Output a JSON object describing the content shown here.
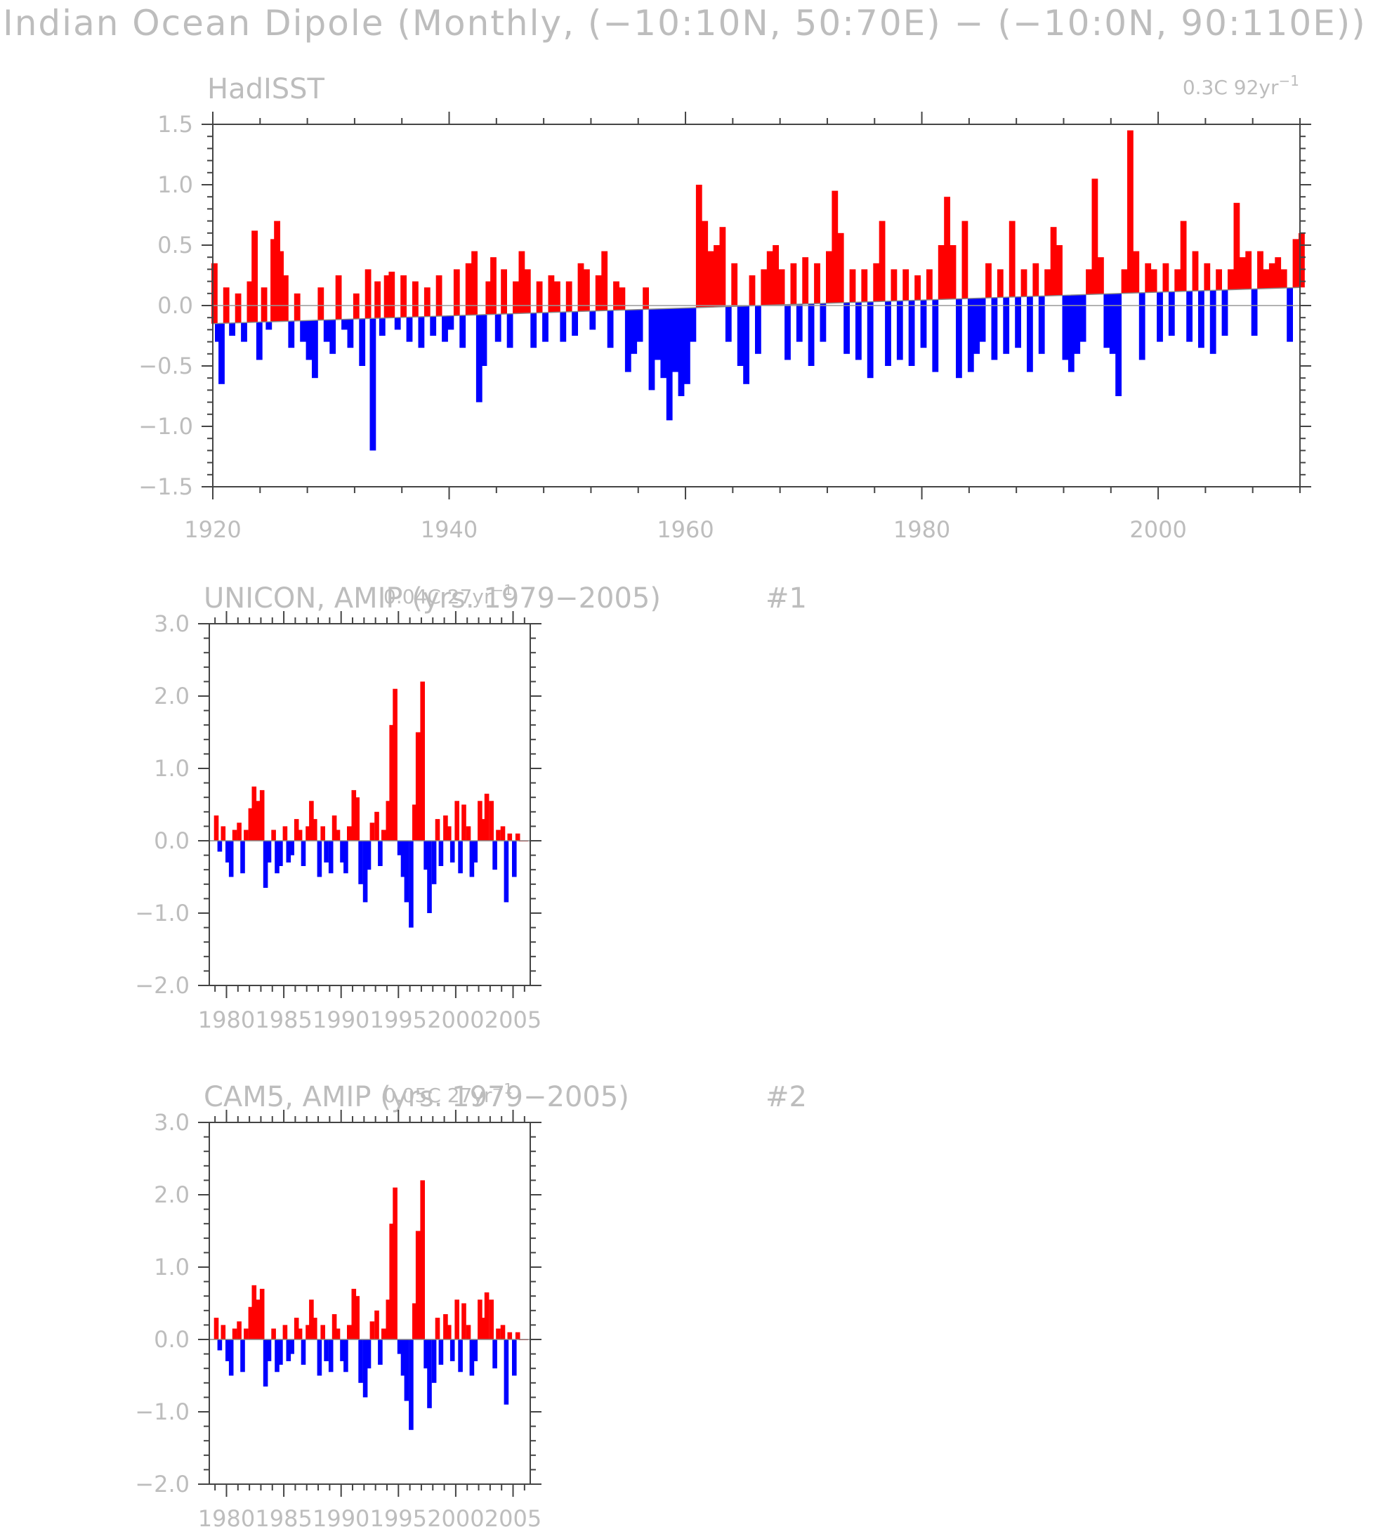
{
  "page": {
    "title": "Indian Ocean Dipole (Monthly, (−10:10N, 50:70E) − (−10:0N, 90:110E))"
  },
  "colors": {
    "positive": "#ff0000",
    "negative": "#0000ff",
    "text": "#bdbdbd",
    "axis": "#444444"
  },
  "chart_data": [
    {
      "type": "bar",
      "title": "HadISST",
      "trend_label": "0.3C 92yr",
      "trend_exp": "−1",
      "panel_number": "",
      "xlim": [
        1920,
        2012
      ],
      "ylim": [
        -1.5,
        1.5
      ],
      "baseline": [
        [
          1920,
          -0.15
        ],
        [
          1960,
          -0.02
        ],
        [
          2012,
          0.15
        ]
      ],
      "x_ticks": [
        1920,
        1940,
        1960,
        1980,
        2000
      ],
      "x_tick_labels": [
        "1920",
        "1940",
        "1960",
        "1980",
        "2000"
      ],
      "y_ticks": [
        -1.5,
        -1.0,
        -0.5,
        0.0,
        0.5,
        1.0,
        1.5
      ],
      "y_tick_labels": [
        "−1.5",
        "−1.0",
        "−0.5",
        "0.0",
        "0.5",
        "1.0",
        "1.5"
      ],
      "series": [
        {
          "x": [
            1920.0,
            1920.3,
            1920.6,
            1921.0,
            1921.5,
            1922.0,
            1922.5,
            1923.0,
            1923.4,
            1923.8,
            1924.2,
            1924.6,
            1925.0,
            1925.3,
            1925.6,
            1926.0,
            1926.5,
            1927.0,
            1927.5,
            1928.0,
            1928.5,
            1929.0,
            1929.5,
            1930.0,
            1930.5,
            1931.0,
            1931.5,
            1932.0,
            1932.5,
            1933.0,
            1933.4,
            1933.8,
            1934.2,
            1934.6,
            1935.0,
            1935.5,
            1936.0,
            1936.5,
            1937.0,
            1937.5,
            1938.0,
            1938.5,
            1939.0,
            1939.5,
            1940.0,
            1940.5,
            1941.0,
            1941.5,
            1942.0,
            1942.4,
            1942.8,
            1943.2,
            1943.6,
            1944.0,
            1944.5,
            1945.0,
            1945.5,
            1946.0,
            1946.5,
            1947.0,
            1947.5,
            1948.0,
            1948.5,
            1949.0,
            1949.5,
            1950.0,
            1950.5,
            1951.0,
            1951.5,
            1952.0,
            1952.5,
            1953.0,
            1953.5,
            1954.0,
            1954.5,
            1955.0,
            1955.5,
            1956.0,
            1956.5,
            1957.0,
            1957.5,
            1958.0,
            1958.5,
            1959.0,
            1959.5,
            1960.0,
            1960.5,
            1961.0,
            1961.5,
            1962.0,
            1962.5,
            1963.0,
            1963.5,
            1964.0,
            1964.5,
            1965.0,
            1965.5,
            1966.0,
            1966.5,
            1967.0,
            1967.5,
            1968.0,
            1968.5,
            1969.0,
            1969.5,
            1970.0,
            1970.5,
            1971.0,
            1971.5,
            1972.0,
            1972.5,
            1973.0,
            1973.5,
            1974.0,
            1974.5,
            1975.0,
            1975.5,
            1976.0,
            1976.5,
            1977.0,
            1977.5,
            1978.0,
            1978.5,
            1979.0,
            1979.5,
            1980.0,
            1980.5,
            1981.0,
            1981.5,
            1982.0,
            1982.5,
            1983.0,
            1983.5,
            1984.0,
            1984.5,
            1985.0,
            1985.5,
            1986.0,
            1986.5,
            1987.0,
            1987.5,
            1988.0,
            1988.5,
            1989.0,
            1989.5,
            1990.0,
            1990.5,
            1991.0,
            1991.5,
            1992.0,
            1992.5,
            1993.0,
            1993.5,
            1994.0,
            1994.5,
            1995.0,
            1995.5,
            1996.0,
            1996.5,
            1997.0,
            1997.5,
            1998.0,
            1998.5,
            1999.0,
            1999.5,
            2000.0,
            2000.5,
            2001.0,
            2001.5,
            2002.0,
            2002.5,
            2003.0,
            2003.5,
            2004.0,
            2004.5,
            2005.0,
            2005.5,
            2006.0,
            2006.5,
            2007.0,
            2007.5,
            2008.0,
            2008.5,
            2009.0,
            2009.5,
            2010.0,
            2010.5,
            2011.0,
            2011.5,
            2012.0
          ],
          "values": [
            0.35,
            -0.3,
            -0.65,
            0.15,
            -0.25,
            0.1,
            -0.3,
            0.2,
            0.62,
            -0.45,
            0.15,
            -0.2,
            0.55,
            0.7,
            0.45,
            0.25,
            -0.35,
            0.1,
            -0.3,
            -0.45,
            -0.6,
            0.15,
            -0.3,
            -0.4,
            0.25,
            -0.2,
            -0.35,
            0.1,
            -0.5,
            0.3,
            -1.2,
            0.2,
            -0.25,
            0.25,
            0.28,
            -0.2,
            0.25,
            -0.3,
            0.2,
            -0.35,
            0.15,
            -0.25,
            0.25,
            -0.3,
            -0.2,
            0.3,
            -0.35,
            0.35,
            0.45,
            -0.8,
            -0.5,
            0.2,
            0.4,
            -0.3,
            0.3,
            -0.35,
            0.2,
            0.45,
            0.3,
            -0.35,
            0.2,
            -0.3,
            0.25,
            0.2,
            -0.3,
            0.2,
            -0.25,
            0.35,
            0.3,
            -0.2,
            0.25,
            0.45,
            -0.35,
            0.2,
            0.15,
            -0.55,
            -0.4,
            -0.3,
            0.15,
            -0.7,
            -0.45,
            -0.6,
            -0.95,
            -0.55,
            -0.75,
            -0.65,
            -0.3,
            1.0,
            0.7,
            0.45,
            0.5,
            0.65,
            -0.3,
            0.35,
            -0.5,
            -0.65,
            0.25,
            -0.4,
            0.3,
            0.45,
            0.5,
            0.3,
            -0.45,
            0.35,
            -0.3,
            0.4,
            -0.5,
            0.35,
            -0.3,
            0.45,
            0.95,
            0.6,
            -0.4,
            0.3,
            -0.45,
            0.3,
            -0.6,
            0.35,
            0.7,
            -0.5,
            0.3,
            -0.45,
            0.3,
            -0.5,
            0.25,
            -0.35,
            0.3,
            -0.55,
            0.5,
            0.9,
            0.5,
            -0.6,
            0.7,
            -0.55,
            -0.4,
            -0.3,
            0.35,
            -0.45,
            0.3,
            -0.4,
            0.7,
            -0.35,
            0.3,
            -0.55,
            0.35,
            -0.4,
            0.3,
            0.65,
            0.5,
            -0.45,
            -0.55,
            -0.4,
            -0.3,
            0.3,
            1.05,
            0.4,
            -0.35,
            -0.4,
            -0.75,
            0.3,
            1.45,
            0.45,
            -0.45,
            0.35,
            0.3,
            -0.3,
            0.35,
            -0.25,
            0.3,
            0.7,
            -0.3,
            0.45,
            -0.35,
            0.35,
            -0.4,
            0.3,
            -0.25,
            0.3,
            0.85,
            0.4,
            0.45,
            -0.25,
            0.45,
            0.3,
            0.35,
            0.4,
            0.3,
            -0.3,
            0.55,
            0.6
          ]
        }
      ]
    },
    {
      "type": "bar",
      "title": "UNICON, AMIP (yrs. 1979−2005)",
      "trend_label": "0.04C 27yr",
      "trend_exp": "−1",
      "panel_number": "#1",
      "xlim": [
        1978.5,
        2006.5
      ],
      "ylim": [
        -2.0,
        3.0
      ],
      "baseline": [
        [
          1978.5,
          0.0
        ],
        [
          2006.5,
          0.0
        ]
      ],
      "x_ticks": [
        1980,
        1985,
        1990,
        1995,
        2000,
        2005
      ],
      "x_tick_labels": [
        "1980",
        "1985",
        "1990",
        "1995",
        "2000",
        "2005"
      ],
      "y_ticks": [
        -2.0,
        -1.0,
        0.0,
        1.0,
        2.0,
        3.0
      ],
      "y_tick_labels": [
        "−2.0",
        "−1.0",
        "0.0",
        "1.0",
        "2.0",
        "3.0"
      ],
      "series": [
        {
          "x": [
            1979.0,
            1979.3,
            1979.6,
            1980.0,
            1980.3,
            1980.6,
            1981.0,
            1981.3,
            1981.6,
            1982.0,
            1982.3,
            1982.6,
            1983.0,
            1983.3,
            1983.6,
            1984.0,
            1984.3,
            1984.6,
            1985.0,
            1985.3,
            1985.6,
            1986.0,
            1986.3,
            1986.6,
            1987.0,
            1987.3,
            1987.6,
            1988.0,
            1988.3,
            1988.6,
            1989.0,
            1989.3,
            1989.6,
            1990.0,
            1990.3,
            1990.6,
            1991.0,
            1991.3,
            1991.6,
            1992.0,
            1992.3,
            1992.6,
            1993.0,
            1993.3,
            1993.6,
            1994.0,
            1994.3,
            1994.6,
            1995.0,
            1995.3,
            1995.6,
            1996.0,
            1996.3,
            1996.6,
            1997.0,
            1997.3,
            1997.6,
            1998.0,
            1998.3,
            1998.6,
            1999.0,
            1999.3,
            1999.6,
            2000.0,
            2000.3,
            2000.6,
            2001.0,
            2001.3,
            2001.6,
            2002.0,
            2002.3,
            2002.6,
            2003.0,
            2003.3,
            2003.6,
            2004.0,
            2004.3,
            2004.6,
            2005.0,
            2005.3,
            2005.6,
            2006.0
          ],
          "values": [
            0.35,
            -0.15,
            0.2,
            -0.3,
            -0.5,
            0.15,
            0.25,
            -0.45,
            0.15,
            0.45,
            0.75,
            0.55,
            0.7,
            -0.65,
            -0.3,
            0.15,
            -0.45,
            -0.35,
            0.2,
            -0.3,
            -0.2,
            0.3,
            0.15,
            -0.35,
            0.2,
            0.55,
            0.3,
            -0.5,
            0.2,
            -0.3,
            -0.45,
            0.35,
            0.15,
            -0.3,
            -0.45,
            0.2,
            0.7,
            0.6,
            -0.6,
            -0.85,
            -0.4,
            0.25,
            0.4,
            -0.35,
            0.15,
            0.55,
            1.6,
            2.1,
            -0.2,
            -0.5,
            -0.85,
            -1.2,
            0.5,
            1.5,
            2.2,
            -0.4,
            -1.0,
            -0.6,
            0.3,
            -0.35,
            0.35,
            0.2,
            -0.3,
            0.55,
            -0.45,
            0.5,
            0.2,
            -0.5,
            -0.3,
            0.55,
            0.3,
            0.65,
            0.55,
            -0.4,
            0.15,
            0.2,
            -0.85,
            0.1,
            -0.5,
            0.1,
            0.0,
            0.0
          ]
        }
      ]
    },
    {
      "type": "bar",
      "title": "CAM5, AMIP (yrs. 1979−2005)",
      "trend_label": "0.05C 27yr",
      "trend_exp": "−1",
      "panel_number": "#2",
      "xlim": [
        1978.5,
        2006.5
      ],
      "ylim": [
        -2.0,
        3.0
      ],
      "baseline": [
        [
          1978.5,
          0.0
        ],
        [
          2006.5,
          0.0
        ]
      ],
      "x_ticks": [
        1980,
        1985,
        1990,
        1995,
        2000,
        2005
      ],
      "x_tick_labels": [
        "1980",
        "1985",
        "1990",
        "1995",
        "2000",
        "2005"
      ],
      "y_ticks": [
        -2.0,
        -1.0,
        0.0,
        1.0,
        2.0,
        3.0
      ],
      "y_tick_labels": [
        "−2.0",
        "−1.0",
        "0.0",
        "1.0",
        "2.0",
        "3.0"
      ],
      "series": [
        {
          "x": [
            1979.0,
            1979.3,
            1979.6,
            1980.0,
            1980.3,
            1980.6,
            1981.0,
            1981.3,
            1981.6,
            1982.0,
            1982.3,
            1982.6,
            1983.0,
            1983.3,
            1983.6,
            1984.0,
            1984.3,
            1984.6,
            1985.0,
            1985.3,
            1985.6,
            1986.0,
            1986.3,
            1986.6,
            1987.0,
            1987.3,
            1987.6,
            1988.0,
            1988.3,
            1988.6,
            1989.0,
            1989.3,
            1989.6,
            1990.0,
            1990.3,
            1990.6,
            1991.0,
            1991.3,
            1991.6,
            1992.0,
            1992.3,
            1992.6,
            1993.0,
            1993.3,
            1993.6,
            1994.0,
            1994.3,
            1994.6,
            1995.0,
            1995.3,
            1995.6,
            1996.0,
            1996.3,
            1996.6,
            1997.0,
            1997.3,
            1997.6,
            1998.0,
            1998.3,
            1998.6,
            1999.0,
            1999.3,
            1999.6,
            2000.0,
            2000.3,
            2000.6,
            2001.0,
            2001.3,
            2001.6,
            2002.0,
            2002.3,
            2002.6,
            2003.0,
            2003.3,
            2003.6,
            2004.0,
            2004.3,
            2004.6,
            2005.0,
            2005.3,
            2005.6,
            2006.0
          ],
          "values": [
            0.3,
            -0.15,
            0.2,
            -0.3,
            -0.5,
            0.15,
            0.25,
            -0.45,
            0.15,
            0.45,
            0.75,
            0.55,
            0.7,
            -0.65,
            -0.3,
            0.15,
            -0.45,
            -0.35,
            0.2,
            -0.3,
            -0.2,
            0.3,
            0.15,
            -0.35,
            0.2,
            0.55,
            0.3,
            -0.5,
            0.2,
            -0.3,
            -0.45,
            0.35,
            0.15,
            -0.3,
            -0.45,
            0.2,
            0.7,
            0.6,
            -0.6,
            -0.8,
            -0.4,
            0.25,
            0.4,
            -0.35,
            0.15,
            0.55,
            1.6,
            2.1,
            -0.2,
            -0.5,
            -0.85,
            -1.25,
            0.5,
            1.5,
            2.2,
            -0.4,
            -0.95,
            -0.6,
            0.3,
            -0.35,
            0.35,
            0.2,
            -0.3,
            0.55,
            -0.45,
            0.5,
            0.2,
            -0.5,
            -0.3,
            0.55,
            0.3,
            0.65,
            0.55,
            -0.4,
            0.15,
            0.2,
            -0.9,
            0.1,
            -0.5,
            0.1,
            0.0,
            0.0
          ]
        }
      ]
    }
  ]
}
